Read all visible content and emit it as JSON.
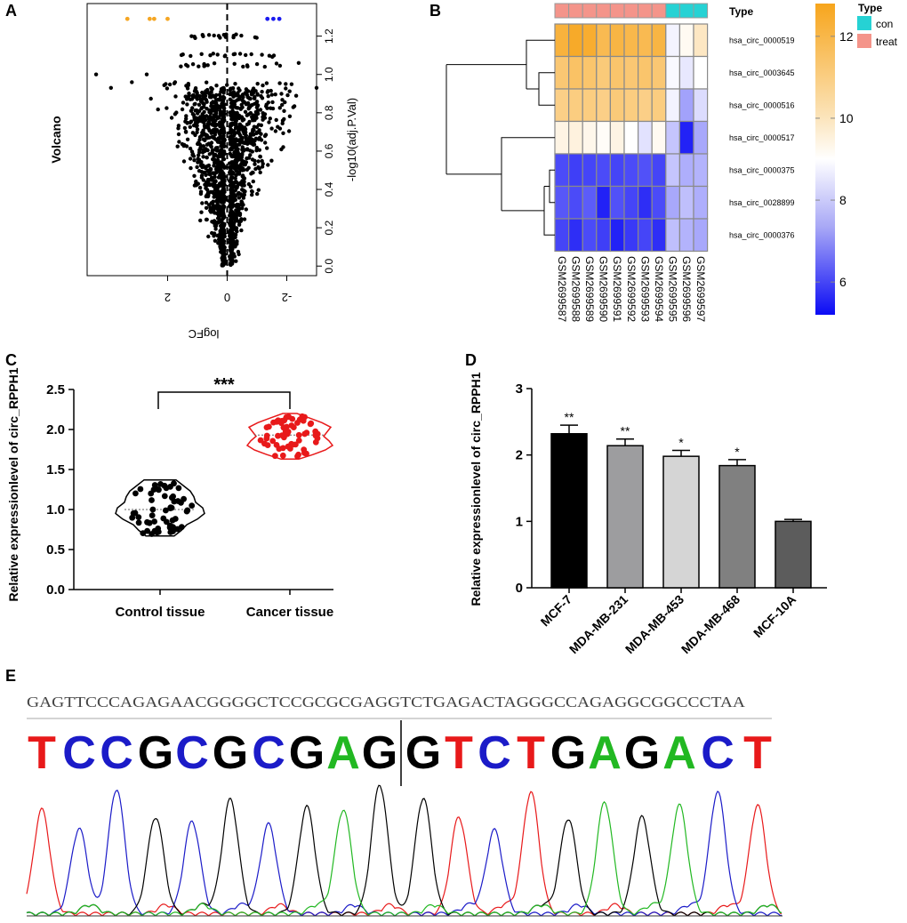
{
  "panels": {
    "A": "A",
    "B": "B",
    "C": "C",
    "D": "D",
    "E": "E"
  },
  "colors": {
    "orange": "#f5a623",
    "blue": "#1b1bf0",
    "red": "#e8191a",
    "green": "#22b822",
    "con": "#26d2d4",
    "treat": "#f4948a",
    "heat_high": "#f7a51c",
    "heat_mid": "#ffffff",
    "heat_low": "#0b0bf5"
  },
  "chart_data": [
    {
      "id": "A",
      "type": "scatter",
      "title": "Volcano",
      "xlabel": "logFC",
      "ylabel": "-log10(adj.P.Val)",
      "x_reversed": true,
      "xlim": [
        -3.0,
        4.7
      ],
      "ylim": [
        -0.05,
        1.37
      ],
      "x_ticks": [
        2,
        0,
        -2
      ],
      "x_tick_labels": [
        "2",
        "0",
        "-2"
      ],
      "y_ticks": [
        0.0,
        0.2,
        0.4,
        0.6,
        0.8,
        1.0,
        1.2
      ],
      "y_tick_labels": [
        "0.0",
        "0.2",
        "0.4",
        "0.6",
        "0.8",
        "1.0",
        "1.2"
      ],
      "vline_x": 0,
      "highlight_up": [
        [
          3.35,
          1.29
        ],
        [
          2.6,
          1.29
        ],
        [
          2.45,
          1.29
        ],
        [
          2.0,
          1.29
        ]
      ],
      "highlight_down": [
        [
          -1.35,
          1.29
        ],
        [
          -1.55,
          1.29
        ],
        [
          -1.75,
          1.29
        ]
      ],
      "background_point_count": "≈1500 (simulated cloud)"
    },
    {
      "id": "B",
      "type": "heatmap",
      "legend_title": "Type",
      "annotation_label": "Type",
      "groups": [
        "con",
        "treat"
      ],
      "columns": [
        "GSM2699587",
        "GSM2699588",
        "GSM2699589",
        "GSM2699590",
        "GSM2699591",
        "GSM2699592",
        "GSM2699593",
        "GSM2699594",
        "GSM2699595",
        "GSM2699596",
        "GSM2699597"
      ],
      "column_groups": [
        "treat",
        "treat",
        "treat",
        "treat",
        "treat",
        "treat",
        "treat",
        "treat",
        "con",
        "con",
        "con"
      ],
      "rows": [
        "hsa_circ_0000519",
        "hsa_circ_0003645",
        "hsa_circ_0000516",
        "hsa_circ_0000517",
        "hsa_circ_0000375",
        "hsa_circ_0028899",
        "hsa_circ_0000376"
      ],
      "values": [
        [
          12.3,
          12.6,
          12.5,
          12.0,
          12.2,
          12.1,
          12.0,
          12.2,
          9.2,
          9.6,
          10.3
        ],
        [
          11.5,
          11.7,
          11.6,
          11.4,
          11.6,
          11.5,
          11.6,
          11.5,
          9.3,
          9.0,
          9.4
        ],
        [
          11.2,
          11.3,
          11.3,
          11.2,
          11.4,
          11.3,
          11.2,
          11.3,
          9.2,
          7.8,
          8.8
        ],
        [
          9.8,
          9.9,
          9.7,
          9.5,
          9.8,
          9.4,
          8.9,
          9.6,
          8.4,
          5.6,
          7.9
        ],
        [
          6.3,
          6.1,
          6.2,
          6.3,
          6.2,
          6.3,
          6.4,
          6.2,
          8.4,
          8.0,
          8.1
        ],
        [
          6.5,
          6.3,
          6.6,
          5.6,
          6.4,
          6.2,
          5.8,
          6.3,
          7.9,
          8.3,
          8.0
        ],
        [
          6.2,
          5.8,
          6.3,
          6.1,
          5.6,
          6.0,
          6.2,
          5.8,
          8.3,
          8.1,
          7.9
        ]
      ],
      "colorbar_ticks": [
        12,
        10,
        8,
        6
      ],
      "color_range": [
        5.2,
        12.8
      ],
      "row_dendrogram": true
    },
    {
      "id": "C",
      "type": "violin",
      "ylabel": "Relative expressionlevel of circ_RPPH1",
      "categories": [
        "Control tissue",
        "Cancer tissue"
      ],
      "ylim": [
        0.0,
        2.5
      ],
      "y_ticks": [
        0.0,
        0.5,
        1.0,
        1.5,
        2.0,
        2.5
      ],
      "y_tick_labels": [
        "0.0",
        "0.5",
        "1.0",
        "1.5",
        "2.0",
        "2.5"
      ],
      "medians": [
        1.0,
        1.93
      ],
      "ranges": [
        [
          0.67,
          1.37
        ],
        [
          1.63,
          2.2
        ]
      ],
      "significance": "***",
      "series_colors": [
        "#000000",
        "#e8191a"
      ]
    },
    {
      "id": "D",
      "type": "bar",
      "ylabel": "Relative expressionlevel of circ_RPPH1",
      "categories": [
        "MCF-7",
        "MDA-MB-231",
        "MDA-MB-453",
        "MDA-MB-468",
        "MCF-10A"
      ],
      "values": [
        2.32,
        2.14,
        1.98,
        1.84,
        1.0
      ],
      "errors": [
        0.13,
        0.1,
        0.09,
        0.09,
        0.03
      ],
      "significance": [
        "**",
        "**",
        "*",
        "*",
        ""
      ],
      "ylim": [
        0,
        3
      ],
      "y_ticks": [
        0,
        1,
        2,
        3
      ],
      "y_tick_labels": [
        "0",
        "1",
        "2",
        "3"
      ],
      "bar_colors": [
        "#000000",
        "#9d9d9f",
        "#d5d5d5",
        "#808080",
        "#5c5c5c"
      ]
    },
    {
      "id": "E",
      "type": "chromatogram",
      "sequence_full": "GAGTTCCCAGAGAACGGGGCTCCGCGCGAGGTCTGAGACTAGGGCCAGAGGCGGCCCTAA",
      "called_bases": "TCCGCGCGAGGTCTGAGACT",
      "junction_after_index": 10,
      "base_colors": {
        "T": "#e8191a",
        "C": "#1b1bc8",
        "G": "#000000",
        "A": "#22b822"
      },
      "peak_heights": [
        0.71,
        0.58,
        0.85,
        0.66,
        0.63,
        0.78,
        0.61,
        0.73,
        0.71,
        0.88,
        0.79,
        0.66,
        0.57,
        0.83,
        0.65,
        0.76,
        0.66,
        0.74,
        0.83,
        0.74
      ]
    }
  ]
}
